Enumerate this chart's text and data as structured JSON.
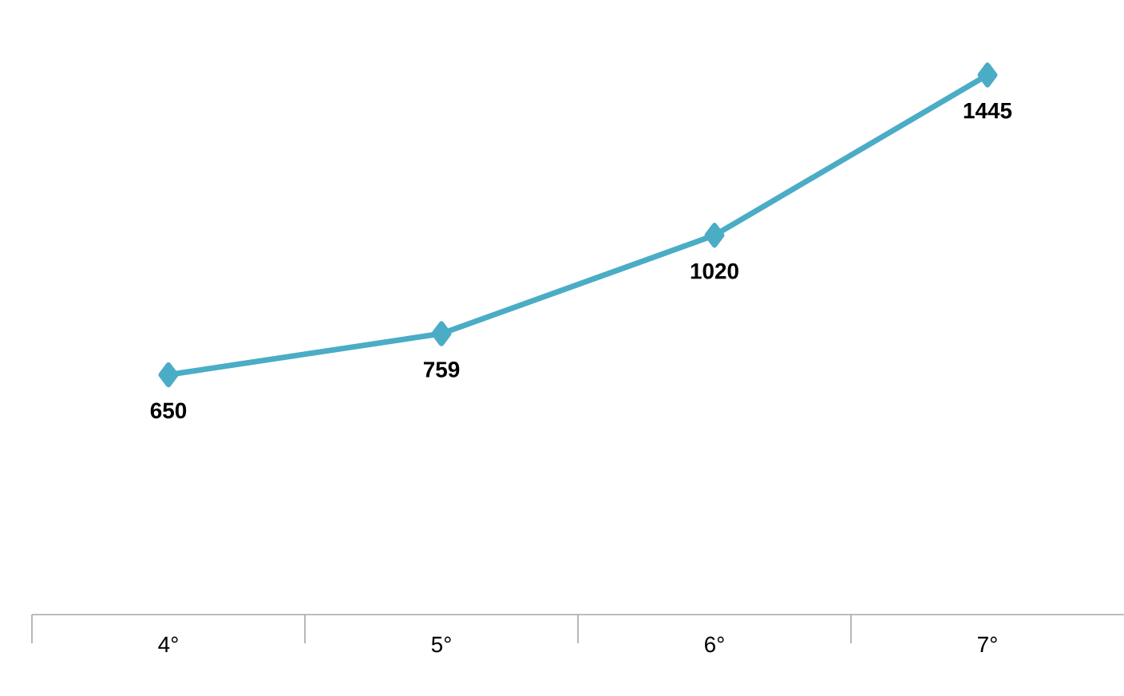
{
  "chart_data": {
    "type": "line",
    "categories": [
      "4°",
      "5°",
      "6°",
      "7°"
    ],
    "series": [
      {
        "color": "#4bacc6",
        "values": [
          650,
          759,
          1020,
          1445
        ]
      }
    ],
    "tick_labels": "x",
    "data_labels": true,
    "marker": "diamond",
    "line_style": "solid"
  }
}
